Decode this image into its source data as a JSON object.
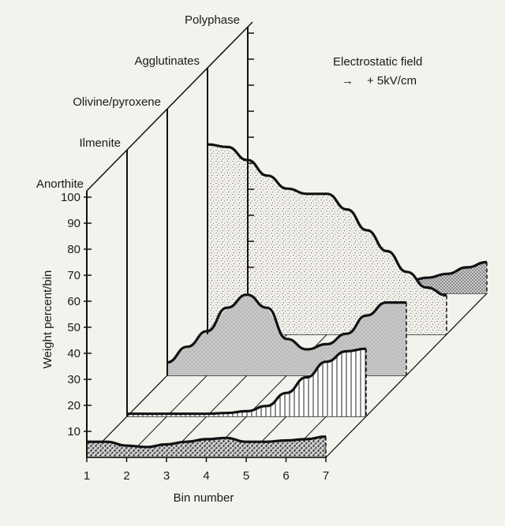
{
  "chart_data": {
    "type": "area",
    "style": "3d-stacked-waterfall",
    "annotation": {
      "line1": "Electrostatic field",
      "arrow_glyph": "→",
      "line2": "+ 5kV/cm"
    },
    "xlabel": "Bin number",
    "ylabel": "Weight percent/bin",
    "x_ticks": [
      "1",
      "2",
      "3",
      "4",
      "5",
      "6",
      "7"
    ],
    "y_ticks": [
      "10",
      "20",
      "30",
      "40",
      "50",
      "60",
      "70",
      "80",
      "90",
      "100"
    ],
    "ylim": [
      0,
      100
    ],
    "xlim": [
      1,
      7
    ],
    "series": [
      {
        "name": "Anorthite",
        "fill": "#555555",
        "x": [
          1,
          1.5,
          2,
          2.5,
          3,
          3.5,
          4,
          4.5,
          5,
          5.5,
          6,
          6.5,
          7
        ],
        "values": [
          6,
          6,
          4.5,
          4,
          5,
          6,
          7,
          7.5,
          6,
          6,
          6.5,
          7,
          8
        ]
      },
      {
        "name": "Ilmenite",
        "fill": "#ffffff",
        "x": [
          1,
          1.5,
          2,
          2.5,
          3,
          3.5,
          4,
          4.5,
          5,
          5.5,
          6,
          6.5,
          7
        ],
        "values": [
          1,
          1,
          1,
          1,
          1,
          1.3,
          2,
          4,
          9,
          15,
          21,
          25,
          26
        ]
      },
      {
        "name": "Olivine/pyroxene",
        "fill": "#c8c8c8",
        "x": [
          1,
          1.5,
          2,
          2.5,
          3,
          3.5,
          4,
          4.5,
          5,
          5.5,
          6,
          6.5,
          7
        ],
        "values": [
          5,
          11,
          17,
          26,
          31,
          26,
          14,
          10,
          12,
          16,
          23,
          28,
          28
        ]
      },
      {
        "name": "Agglutinates",
        "fill": "#e6e6e6",
        "x": [
          1,
          1.5,
          2,
          2.5,
          3,
          3.5,
          4,
          4.5,
          5,
          5.5,
          6,
          6.5,
          7
        ],
        "values": [
          73,
          72,
          67,
          61,
          56,
          54,
          54,
          48,
          40,
          32,
          24,
          18,
          15
        ]
      },
      {
        "name": "Polyphase",
        "fill": "#d2d2d2",
        "x": [
          1,
          1.5,
          2,
          2.5,
          3,
          3.5,
          4,
          4.5,
          5,
          5.5,
          6,
          6.5,
          7
        ],
        "values": [
          0,
          0.5,
          1,
          1.2,
          1.6,
          2,
          2.5,
          3.5,
          4.5,
          6,
          7.5,
          10,
          12
        ]
      }
    ]
  }
}
